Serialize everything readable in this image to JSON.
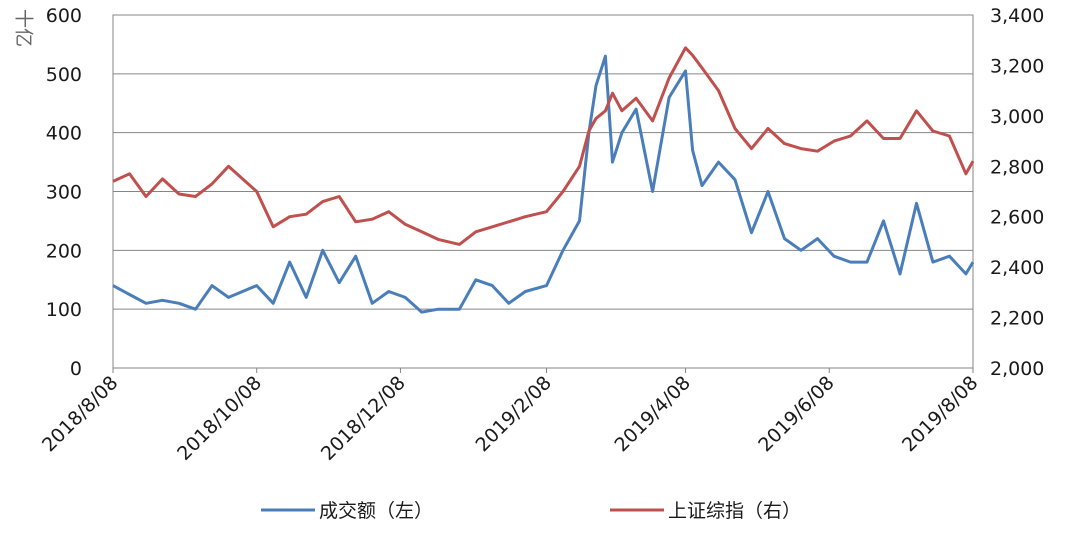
{
  "chart_data": {
    "type": "line",
    "title": "",
    "y_left": {
      "unit_label": "十亿",
      "ylim": [
        0,
        600
      ],
      "ticks": [
        "0",
        "100",
        "200",
        "300",
        "400",
        "500",
        "600"
      ]
    },
    "y_right": {
      "ylim": [
        2000,
        3400
      ],
      "ticks": [
        "2,000",
        "2,200",
        "2,400",
        "2,600",
        "2,800",
        "3,000",
        "3,200",
        "3,400"
      ]
    },
    "x_tick_labels": [
      "2018/8/08",
      "2018/10/08",
      "2018/12/08",
      "2019/2/08",
      "2019/4/08",
      "2019/6/08",
      "2019/8/08"
    ],
    "grid": "horizontal",
    "legend_position": "bottom",
    "series": [
      {
        "name": "成交额（左）",
        "axis": "left",
        "color": "#4a7ebb",
        "x": [
          "2018/8/08",
          "2018/8/15",
          "2018/8/22",
          "2018/8/29",
          "2018/9/05",
          "2018/9/12",
          "2018/9/19",
          "2018/9/26",
          "2018/10/08",
          "2018/10/15",
          "2018/10/22",
          "2018/10/29",
          "2018/11/05",
          "2018/11/12",
          "2018/11/19",
          "2018/11/26",
          "2018/12/03",
          "2018/12/10",
          "2018/12/17",
          "2018/12/24",
          "2019/1/02",
          "2019/1/09",
          "2019/1/16",
          "2019/1/23",
          "2019/1/30",
          "2019/2/08",
          "2019/2/15",
          "2019/2/22",
          "2019/2/26",
          "2019/3/01",
          "2019/3/05",
          "2019/3/08",
          "2019/3/12",
          "2019/3/18",
          "2019/3/25",
          "2019/4/01",
          "2019/4/08",
          "2019/4/11",
          "2019/4/15",
          "2019/4/22",
          "2019/4/29",
          "2019/5/06",
          "2019/5/13",
          "2019/5/20",
          "2019/5/27",
          "2019/6/03",
          "2019/6/10",
          "2019/6/17",
          "2019/6/24",
          "2019/7/01",
          "2019/7/08",
          "2019/7/15",
          "2019/7/22",
          "2019/7/29",
          "2019/8/05",
          "2019/8/08"
        ],
        "values": [
          140,
          125,
          110,
          115,
          110,
          100,
          140,
          120,
          140,
          110,
          180,
          120,
          200,
          145,
          190,
          110,
          130,
          120,
          95,
          100,
          100,
          150,
          140,
          110,
          130,
          140,
          200,
          250,
          400,
          480,
          530,
          350,
          400,
          440,
          300,
          460,
          505,
          370,
          310,
          350,
          320,
          230,
          300,
          220,
          200,
          220,
          190,
          180,
          180,
          250,
          160,
          280,
          180,
          190,
          160,
          180
        ]
      },
      {
        "name": "上证综指（右）",
        "axis": "right",
        "color": "#c0504d",
        "x": [
          "2018/8/08",
          "2018/8/15",
          "2018/8/22",
          "2018/8/29",
          "2018/9/05",
          "2018/9/12",
          "2018/9/19",
          "2018/9/26",
          "2018/10/08",
          "2018/10/15",
          "2018/10/22",
          "2018/10/29",
          "2018/11/05",
          "2018/11/12",
          "2018/11/19",
          "2018/11/26",
          "2018/12/03",
          "2018/12/10",
          "2018/12/17",
          "2018/12/24",
          "2019/1/02",
          "2019/1/09",
          "2019/1/16",
          "2019/1/23",
          "2019/1/30",
          "2019/2/08",
          "2019/2/15",
          "2019/2/22",
          "2019/2/26",
          "2019/3/01",
          "2019/3/05",
          "2019/3/08",
          "2019/3/12",
          "2019/3/18",
          "2019/3/25",
          "2019/4/01",
          "2019/4/08",
          "2019/4/11",
          "2019/4/15",
          "2019/4/22",
          "2019/4/29",
          "2019/5/06",
          "2019/5/13",
          "2019/5/20",
          "2019/5/27",
          "2019/6/03",
          "2019/6/10",
          "2019/6/17",
          "2019/6/24",
          "2019/7/01",
          "2019/7/08",
          "2019/7/15",
          "2019/7/22",
          "2019/7/29",
          "2019/8/05",
          "2019/8/08"
        ],
        "values": [
          2740,
          2770,
          2680,
          2750,
          2690,
          2680,
          2730,
          2800,
          2700,
          2560,
          2600,
          2610,
          2660,
          2680,
          2580,
          2590,
          2620,
          2570,
          2540,
          2510,
          2490,
          2540,
          2560,
          2580,
          2600,
          2620,
          2700,
          2800,
          2940,
          2990,
          3020,
          3090,
          3020,
          3070,
          2980,
          3150,
          3270,
          3240,
          3190,
          3100,
          2950,
          2870,
          2950,
          2890,
          2870,
          2860,
          2900,
          2920,
          2980,
          2910,
          2910,
          3020,
          2940,
          2920,
          2770,
          2820
        ]
      }
    ]
  }
}
